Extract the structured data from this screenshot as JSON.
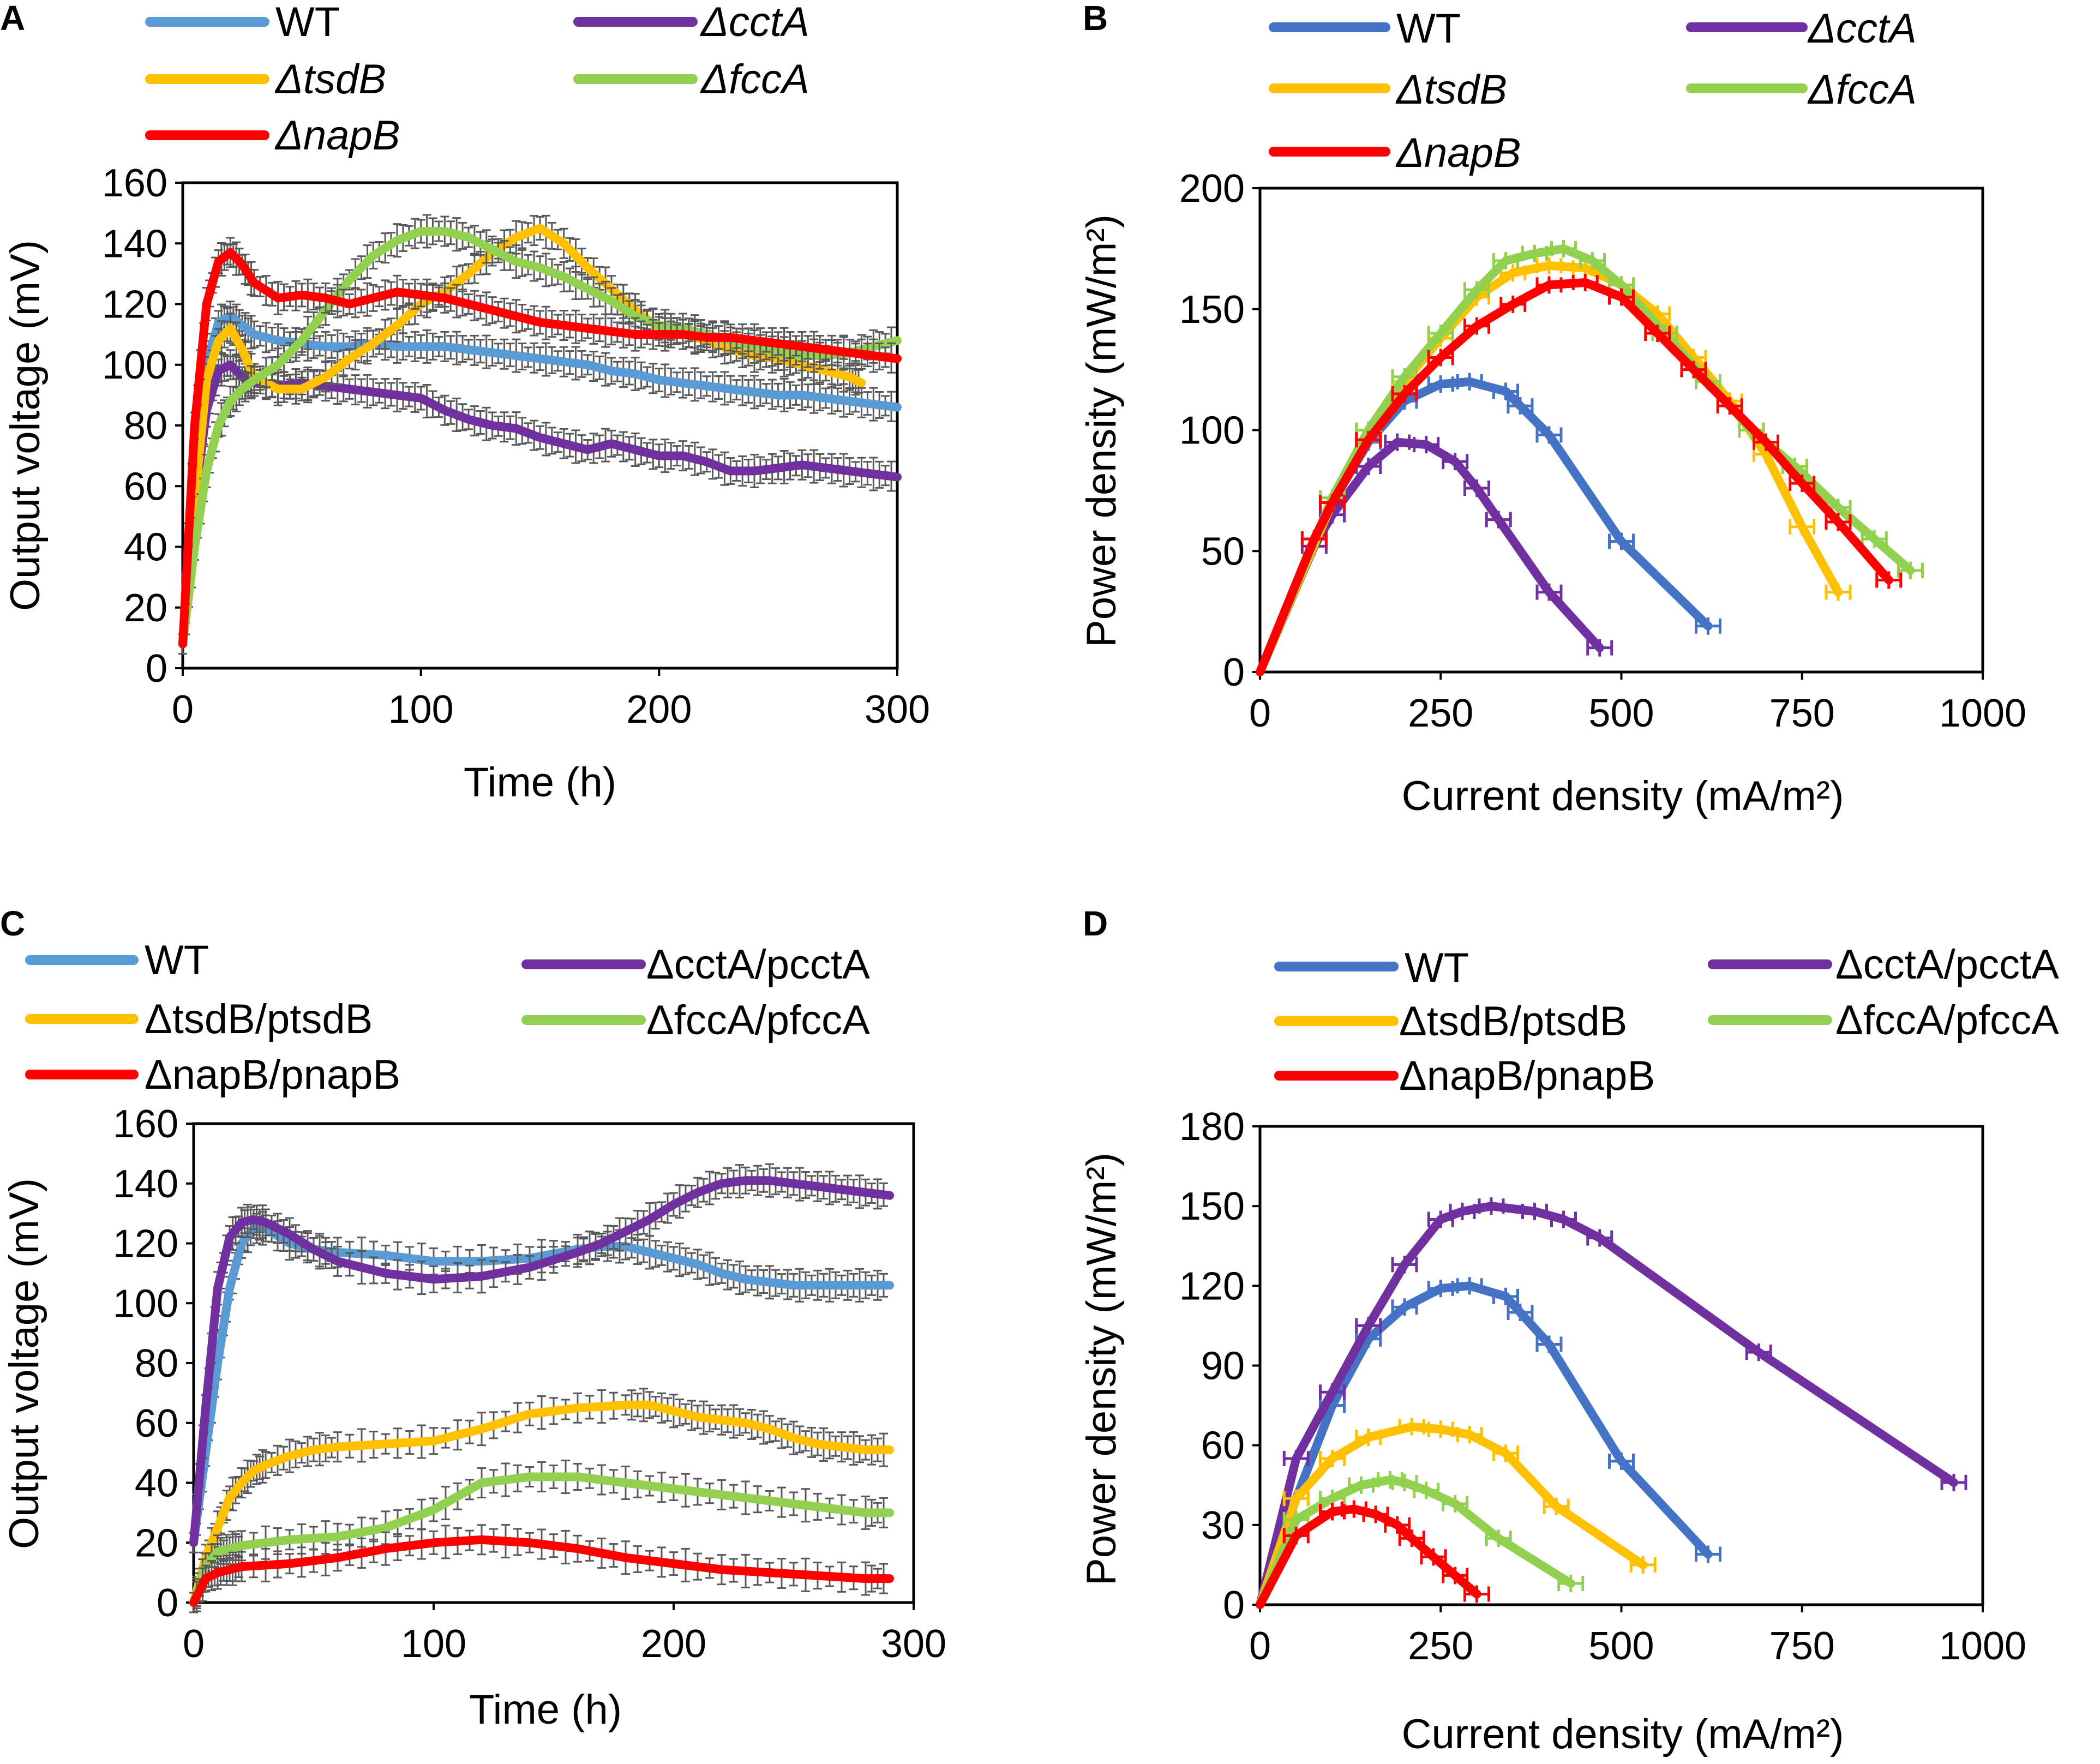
{
  "colors": {
    "WT_A": "#5b9bd5",
    "WT_B": "#4472c4",
    "cct": "#7030a0",
    "tsd": "#ffc000",
    "fcc": "#92d050",
    "nap": "#ff0000"
  },
  "chart_data": [
    {
      "panel": "A",
      "type": "line",
      "xlabel": "Time (h)",
      "ylabel": "Output voltage (mV)",
      "xlim": [
        0,
        300
      ],
      "ylim": [
        0,
        160
      ],
      "xticks": [
        "0",
        "100",
        "200",
        "300"
      ],
      "yticks": [
        "0",
        "20",
        "40",
        "60",
        "80",
        "100",
        "120",
        "140",
        "160"
      ],
      "series": [
        {
          "name": "WT",
          "color": "WT_A",
          "x": [
            0,
            5,
            10,
            15,
            20,
            25,
            30,
            40,
            50,
            60,
            70,
            80,
            90,
            100,
            110,
            120,
            130,
            140,
            150,
            160,
            170,
            180,
            190,
            200,
            210,
            220,
            230,
            240,
            250,
            260,
            270,
            280,
            290,
            300
          ],
          "y": [
            8,
            60,
            100,
            114,
            116,
            113,
            110,
            108,
            107,
            106,
            106,
            107,
            106,
            106,
            106,
            105,
            104,
            103,
            102,
            101,
            100,
            98,
            97,
            95,
            94,
            93,
            92,
            91,
            90,
            90,
            89,
            88,
            87,
            86
          ]
        },
        {
          "name": "ΔcctA",
          "color": "cct",
          "x": [
            0,
            5,
            10,
            15,
            20,
            25,
            30,
            40,
            50,
            60,
            70,
            80,
            90,
            100,
            110,
            120,
            130,
            140,
            150,
            160,
            170,
            180,
            190,
            200,
            210,
            220,
            230,
            240,
            250,
            260,
            270,
            280,
            290,
            300
          ],
          "y": [
            8,
            55,
            85,
            98,
            100,
            96,
            94,
            93,
            94,
            93,
            92,
            91,
            90,
            89,
            85,
            82,
            80,
            79,
            76,
            74,
            72,
            74,
            72,
            70,
            70,
            68,
            65,
            65,
            66,
            67,
            66,
            65,
            64,
            63
          ]
        },
        {
          "name": "ΔtsdB",
          "color": "tsd",
          "x": [
            0,
            5,
            10,
            15,
            20,
            25,
            30,
            40,
            50,
            60,
            70,
            80,
            90,
            100,
            110,
            120,
            130,
            140,
            150,
            160,
            170,
            180,
            190,
            200,
            210,
            220,
            230,
            240,
            250,
            260,
            270,
            280,
            285
          ],
          "y": [
            8,
            55,
            95,
            108,
            112,
            105,
            96,
            92,
            92,
            96,
            102,
            107,
            113,
            120,
            124,
            130,
            137,
            142,
            145,
            140,
            132,
            125,
            118,
            112,
            110,
            108,
            105,
            103,
            102,
            100,
            98,
            96,
            94
          ]
        },
        {
          "name": "ΔfccA",
          "color": "fcc",
          "x": [
            0,
            5,
            10,
            15,
            20,
            25,
            30,
            40,
            50,
            60,
            70,
            80,
            90,
            100,
            110,
            120,
            130,
            140,
            150,
            160,
            170,
            180,
            190,
            200,
            210,
            220,
            230,
            240,
            250,
            260,
            270,
            280,
            290,
            300
          ],
          "y": [
            8,
            40,
            65,
            80,
            88,
            92,
            95,
            100,
            108,
            118,
            128,
            136,
            141,
            144,
            144,
            142,
            138,
            134,
            132,
            129,
            125,
            121,
            116,
            113,
            112,
            110,
            108,
            106,
            104,
            103,
            103,
            104,
            106,
            108
          ]
        },
        {
          "name": "ΔnapB",
          "color": "nap",
          "x": [
            0,
            5,
            10,
            15,
            20,
            25,
            30,
            40,
            50,
            60,
            70,
            80,
            90,
            100,
            110,
            120,
            130,
            140,
            150,
            160,
            170,
            180,
            190,
            200,
            210,
            220,
            230,
            240,
            250,
            260,
            270,
            280,
            290,
            300
          ],
          "y": [
            8,
            80,
            120,
            134,
            137,
            133,
            127,
            122,
            123,
            122,
            120,
            122,
            124,
            123,
            122,
            120,
            118,
            116,
            114,
            113,
            112,
            111,
            110,
            110,
            110,
            109,
            109,
            108,
            107,
            106,
            105,
            104,
            103,
            102
          ]
        }
      ],
      "legend": [
        "WT",
        "ΔcctA",
        "ΔtsdB",
        "ΔfccA",
        "ΔnapB"
      ]
    },
    {
      "panel": "B",
      "type": "line",
      "xlabel": "Current density (mA/m²)",
      "ylabel": "Power density (mW/m²)",
      "xlim": [
        0,
        1000
      ],
      "ylim": [
        0,
        200
      ],
      "xticks": [
        "0",
        "250",
        "500",
        "750",
        "1000"
      ],
      "yticks": [
        "0",
        "50",
        "100",
        "150",
        "200"
      ],
      "series": [
        {
          "name": "WT",
          "color": "WT_B",
          "x": [
            0,
            75,
            100,
            150,
            200,
            250,
            290,
            340,
            360,
            400,
            500,
            620
          ],
          "y": [
            0,
            55,
            70,
            95,
            112,
            119,
            120,
            116,
            110,
            98,
            54,
            19
          ]
        },
        {
          "name": "ΔcctA",
          "color": "cct",
          "x": [
            0,
            75,
            100,
            150,
            190,
            230,
            270,
            300,
            330,
            400,
            470
          ],
          "y": [
            0,
            52,
            65,
            85,
            95,
            94,
            87,
            76,
            63,
            33,
            10
          ]
        },
        {
          "name": "ΔtsdB",
          "color": "tsd",
          "x": [
            0,
            100,
            150,
            200,
            250,
            300,
            350,
            400,
            450,
            500,
            550,
            600,
            650,
            700,
            750,
            800
          ],
          "y": [
            0,
            70,
            100,
            120,
            138,
            155,
            165,
            168,
            167,
            160,
            148,
            130,
            112,
            90,
            60,
            33
          ]
        },
        {
          "name": "ΔfccA",
          "color": "fcc",
          "x": [
            0,
            100,
            150,
            200,
            250,
            300,
            340,
            380,
            420,
            460,
            500,
            560,
            620,
            680,
            740,
            800,
            850,
            900
          ],
          "y": [
            0,
            72,
            100,
            122,
            140,
            158,
            170,
            173,
            175,
            170,
            160,
            140,
            120,
            100,
            85,
            68,
            55,
            42
          ]
        },
        {
          "name": "ΔnapB",
          "color": "nap",
          "x": [
            0,
            75,
            100,
            150,
            200,
            250,
            300,
            350,
            400,
            450,
            500,
            550,
            600,
            650,
            700,
            750,
            800,
            870
          ],
          "y": [
            0,
            55,
            70,
            96,
            115,
            130,
            143,
            152,
            160,
            161,
            155,
            140,
            125,
            110,
            95,
            78,
            62,
            38
          ]
        }
      ],
      "legend": [
        "WT",
        "ΔcctA",
        "ΔtsdB",
        "ΔfccA",
        "ΔnapB"
      ]
    },
    {
      "panel": "C",
      "type": "line",
      "xlabel": "Time (h)",
      "ylabel": "Output voltage (mV)",
      "xlim": [
        0,
        300
      ],
      "ylim": [
        0,
        160
      ],
      "xticks": [
        "0",
        "100",
        "200",
        "300"
      ],
      "yticks": [
        "0",
        "20",
        "40",
        "60",
        "80",
        "100",
        "120",
        "140",
        "160"
      ],
      "series": [
        {
          "name": "WT",
          "color": "WT_A",
          "x": [
            0,
            5,
            10,
            15,
            20,
            25,
            30,
            40,
            50,
            60,
            80,
            100,
            120,
            140,
            160,
            170,
            180,
            190,
            200,
            210,
            220,
            230,
            240,
            250,
            260,
            270,
            280,
            290
          ],
          "y": [
            20,
            50,
            80,
            105,
            120,
            125,
            125,
            120,
            118,
            117,
            116,
            114,
            114,
            115,
            118,
            119,
            119,
            117,
            115,
            113,
            110,
            108,
            107,
            106,
            106,
            106,
            106,
            106
          ]
        },
        {
          "name": "ΔcctA/pcctA",
          "color": "cct",
          "x": [
            0,
            5,
            10,
            15,
            20,
            25,
            30,
            40,
            50,
            60,
            80,
            100,
            120,
            140,
            160,
            170,
            180,
            190,
            200,
            210,
            220,
            230,
            240,
            250,
            260,
            270,
            280,
            290
          ],
          "y": [
            20,
            65,
            105,
            122,
            127,
            128,
            127,
            123,
            118,
            114,
            110,
            108,
            109,
            112,
            117,
            120,
            124,
            128,
            133,
            137,
            140,
            141,
            141,
            140,
            139,
            138,
            137,
            136
          ]
        },
        {
          "name": "ΔtsdB/ptsdB",
          "color": "tsd",
          "x": [
            0,
            5,
            10,
            15,
            20,
            25,
            30,
            40,
            50,
            60,
            80,
            100,
            120,
            140,
            160,
            180,
            190,
            200,
            210,
            220,
            230,
            240,
            250,
            260,
            270,
            280,
            290
          ],
          "y": [
            0,
            15,
            25,
            35,
            40,
            44,
            46,
            49,
            51,
            52,
            53,
            54,
            58,
            63,
            65,
            66,
            66,
            64,
            62,
            61,
            60,
            58,
            55,
            53,
            52,
            51,
            51
          ]
        },
        {
          "name": "ΔfccA/pfccA",
          "color": "fcc",
          "x": [
            0,
            5,
            10,
            15,
            20,
            40,
            60,
            80,
            100,
            120,
            140,
            160,
            180,
            200,
            220,
            240,
            260,
            280,
            290
          ],
          "y": [
            0,
            12,
            17,
            18,
            19,
            21,
            22,
            25,
            31,
            40,
            42,
            42,
            40,
            38,
            36,
            34,
            32,
            30,
            30
          ]
        },
        {
          "name": "ΔnapB/pnapB",
          "color": "nap",
          "x": [
            0,
            5,
            10,
            15,
            20,
            40,
            60,
            80,
            100,
            120,
            140,
            160,
            180,
            200,
            220,
            240,
            260,
            280,
            290
          ],
          "y": [
            0,
            8,
            10,
            11,
            12,
            13,
            15,
            18,
            20,
            21,
            20,
            18,
            15,
            13,
            11,
            10,
            9,
            8,
            8
          ]
        }
      ],
      "legend": [
        "WT",
        "ΔcctA/pcctA",
        "ΔtsdB/ptsdB",
        "ΔfccA/pfccA",
        "ΔnapB/pnapB"
      ]
    },
    {
      "panel": "D",
      "type": "line",
      "xlabel": "Current density (mA/m²)",
      "ylabel": "Power density (mW/m²)",
      "xlim": [
        0,
        1000
      ],
      "ylim": [
        0,
        180
      ],
      "xticks": [
        "0",
        "250",
        "500",
        "750",
        "1000"
      ],
      "yticks": [
        "0",
        "30",
        "60",
        "90",
        "120",
        "150",
        "180"
      ],
      "series": [
        {
          "name": "WT",
          "color": "WT_B",
          "x": [
            0,
            50,
            100,
            150,
            200,
            250,
            290,
            340,
            360,
            400,
            500,
            620
          ],
          "y": [
            0,
            40,
            75,
            100,
            112,
            119,
            120,
            116,
            110,
            98,
            54,
            19
          ]
        },
        {
          "name": "ΔcctA/pcctA",
          "color": "cct",
          "x": [
            0,
            50,
            100,
            150,
            200,
            250,
            280,
            320,
            380,
            420,
            470,
            690,
            960
          ],
          "y": [
            0,
            55,
            80,
            105,
            128,
            145,
            148,
            150,
            148,
            145,
            138,
            95,
            46
          ]
        },
        {
          "name": "ΔtsdB/ptsdB",
          "color": "tsd",
          "x": [
            0,
            50,
            100,
            150,
            210,
            250,
            290,
            340,
            410,
            530
          ],
          "y": [
            0,
            40,
            55,
            63,
            67,
            66,
            64,
            57,
            37,
            15
          ]
        },
        {
          "name": "ΔfccA/pfccA",
          "color": "fcc",
          "x": [
            0,
            50,
            100,
            140,
            180,
            200,
            230,
            270,
            330,
            430
          ],
          "y": [
            0,
            32,
            40,
            45,
            47,
            46,
            43,
            38,
            25,
            8
          ]
        },
        {
          "name": "ΔnapB/pnapB",
          "color": "nap",
          "x": [
            0,
            50,
            100,
            130,
            160,
            190,
            210,
            240,
            270,
            300
          ],
          "y": [
            0,
            26,
            35,
            36,
            34,
            30,
            25,
            18,
            11,
            4
          ]
        }
      ],
      "legend": [
        "WT",
        "ΔcctA/pcctA",
        "ΔtsdB/ptsdB",
        "ΔfccA/pfccA",
        "ΔnapB/pnapB"
      ]
    }
  ]
}
